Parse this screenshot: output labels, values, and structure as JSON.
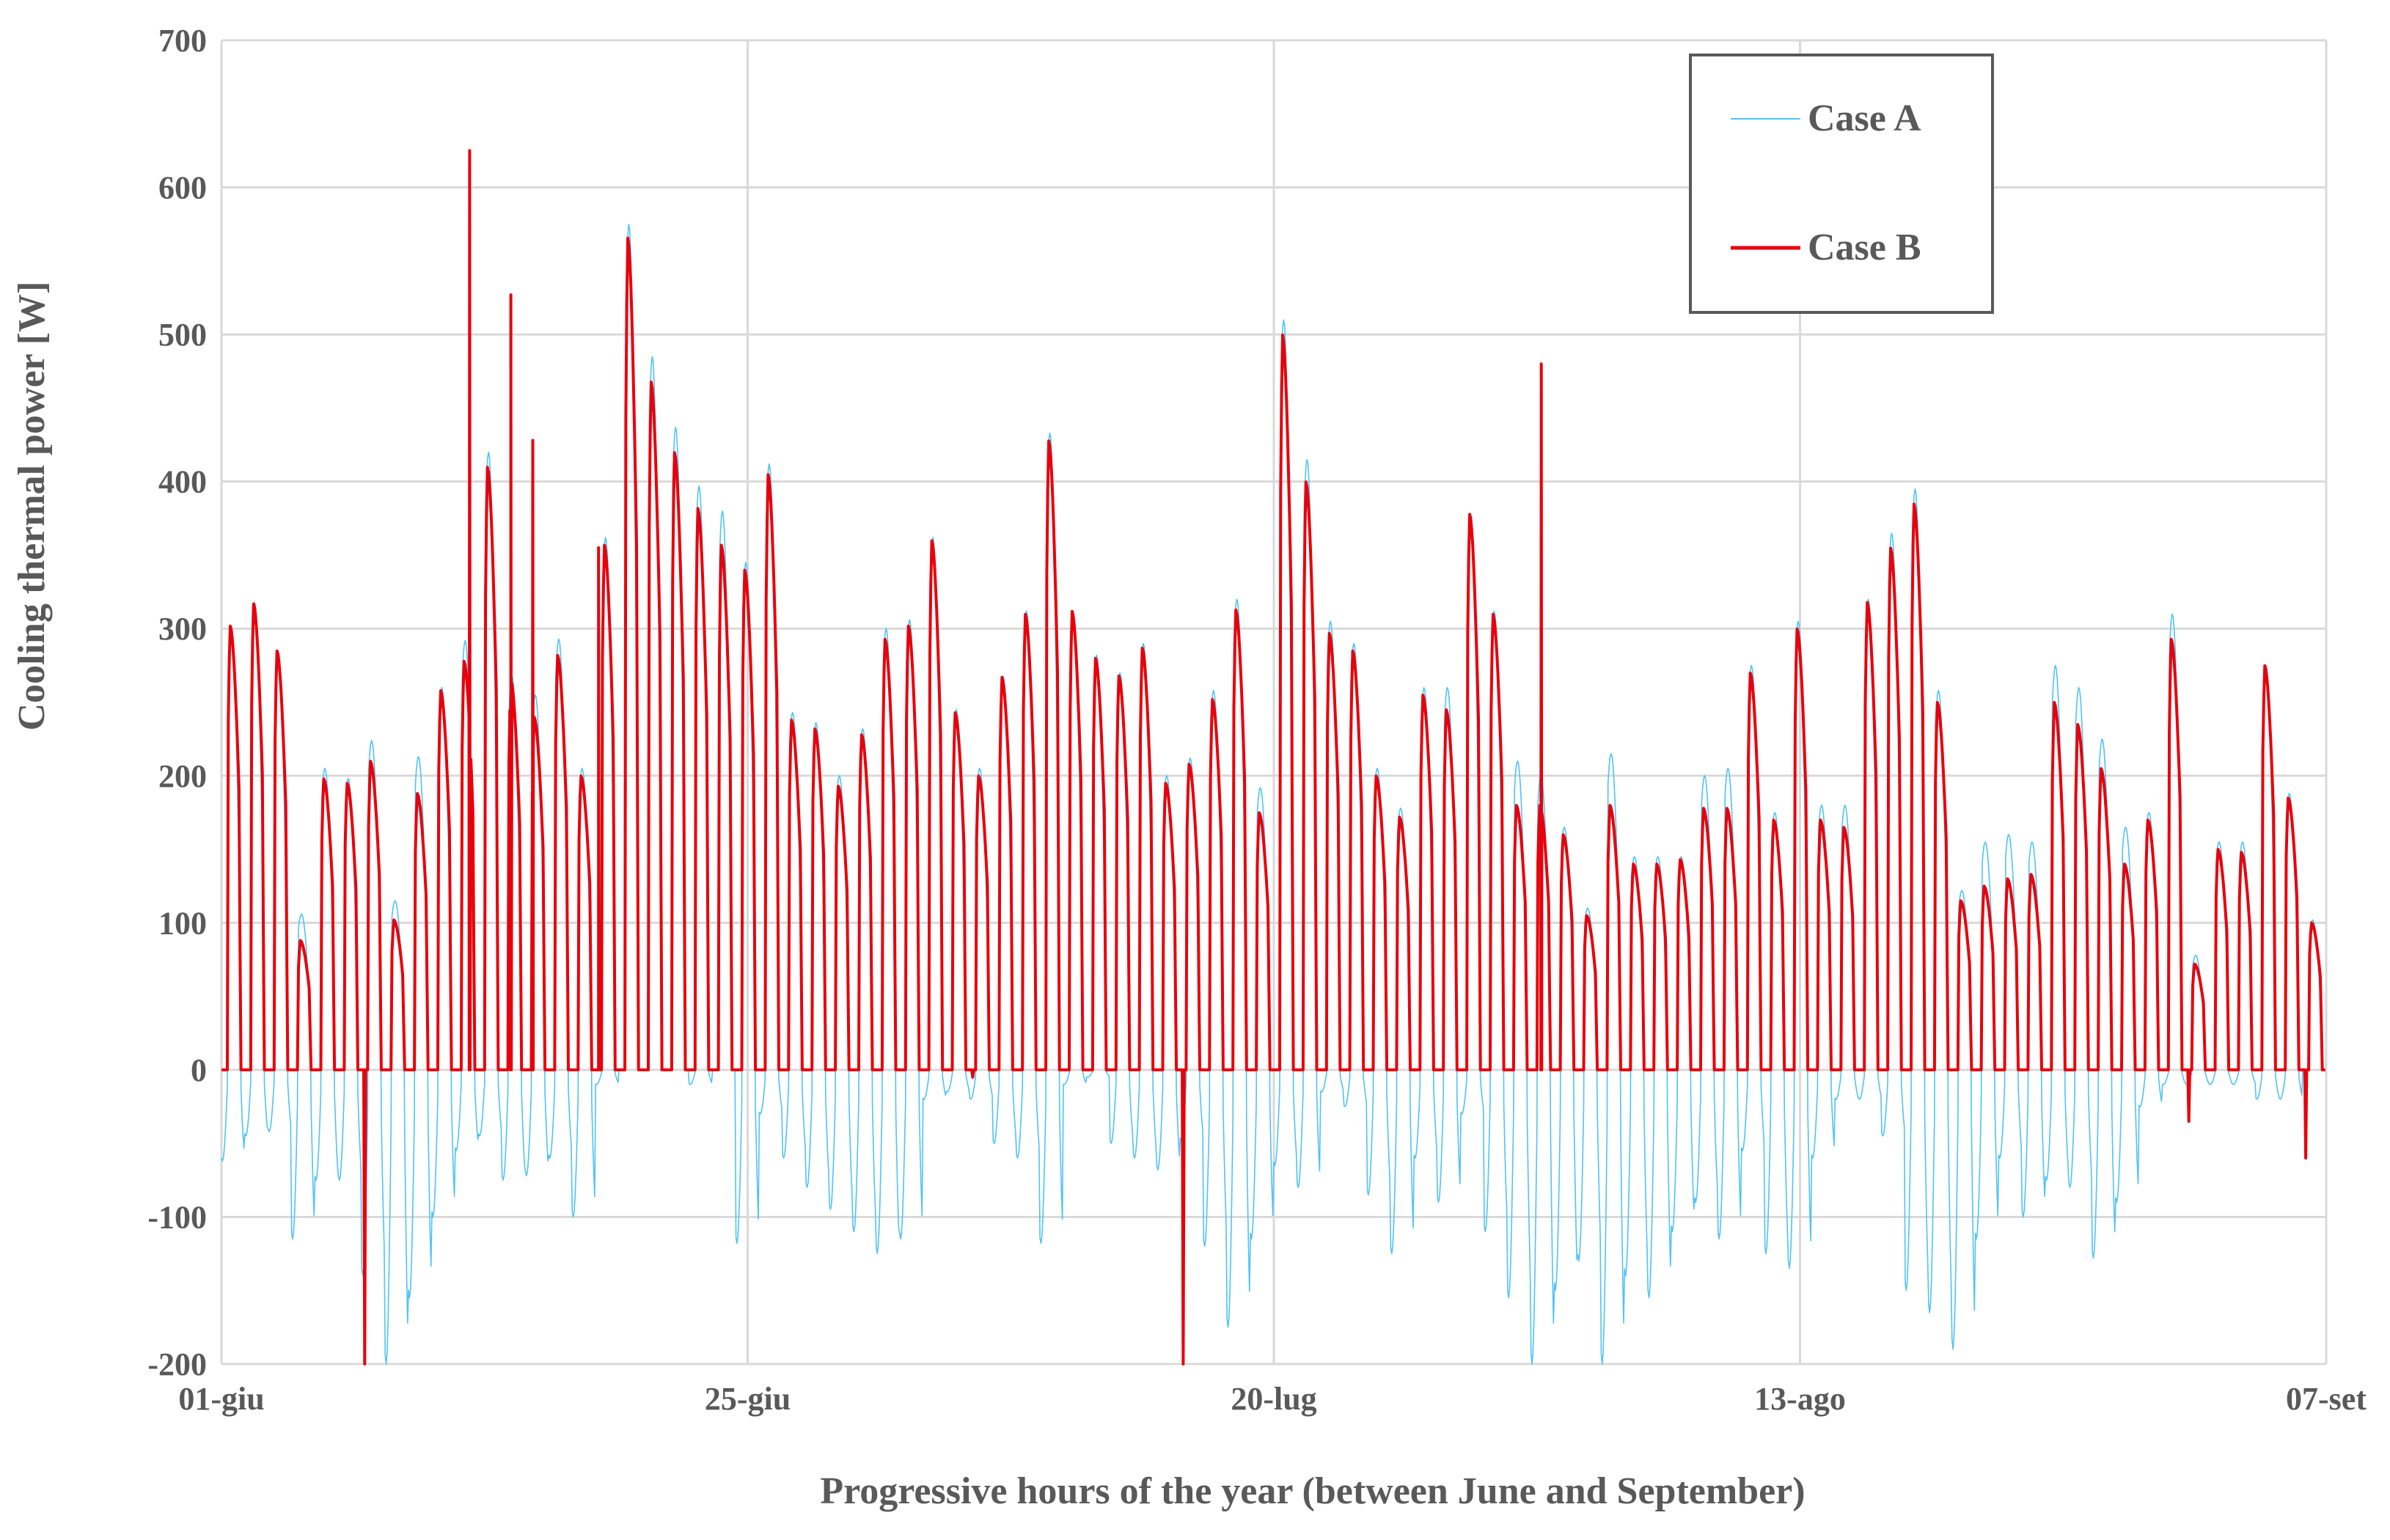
{
  "chart_data": {
    "type": "line",
    "title": "",
    "xlabel": "Progressive hours of the year (between June and September)",
    "ylabel": "Cooling thermal power [W]",
    "ylim": [
      -200,
      700
    ],
    "yticks": [
      -200,
      -100,
      0,
      100,
      200,
      300,
      400,
      500,
      600,
      700
    ],
    "xlim_hours": [
      0,
      2400
    ],
    "xtick_labels": [
      "01-giu",
      "25-giu",
      "20-lug",
      "13-ago",
      "07-set"
    ],
    "grid": true,
    "legend_position": "top-right",
    "series": [
      {
        "name": "Case A",
        "color": "#4FC3F7",
        "daily_peaks": [
          300,
          318,
          285,
          106,
          205,
          198,
          224,
          115,
          213,
          260,
          292,
          420,
          268,
          255,
          293,
          205,
          362,
          575,
          485,
          437,
          397,
          380,
          345,
          412,
          243,
          236,
          200,
          232,
          300,
          306,
          362,
          245,
          205,
          268,
          312,
          433,
          310,
          282,
          270,
          290,
          200,
          212,
          258,
          320,
          192,
          510,
          415,
          305,
          290,
          205,
          178,
          260,
          260,
          378,
          312,
          210,
          200,
          165,
          110,
          215,
          145,
          145,
          145,
          200,
          205,
          275,
          175,
          305,
          180,
          180,
          320,
          365,
          395,
          258,
          122,
          155,
          160,
          155,
          275,
          260,
          225,
          165,
          175,
          310,
          78,
          155,
          155,
          275,
          188,
          102
        ],
        "daily_troughs": [
          -62,
          -45,
          -42,
          -115,
          -75,
          -75,
          -140,
          -200,
          -155,
          -100,
          -55,
          -45,
          -75,
          -72,
          -60,
          -100,
          -10,
          0,
          0,
          0,
          -10,
          0,
          -118,
          -30,
          -60,
          -80,
          -95,
          -110,
          -125,
          -115,
          -20,
          -15,
          -20,
          -50,
          -60,
          -118,
          -10,
          -5,
          -50,
          -60,
          -68,
          -48,
          -120,
          -175,
          -115,
          -65,
          -80,
          -15,
          -25,
          -85,
          -125,
          -60,
          -90,
          -30,
          -110,
          -155,
          -200,
          -150,
          -130,
          -200,
          -140,
          -155,
          -110,
          -90,
          -115,
          -55,
          -125,
          -135,
          -60,
          -20,
          -20,
          -45,
          -150,
          -165,
          -190,
          -115,
          -60,
          -100,
          -75,
          -80,
          -128,
          -90,
          -25,
          -10,
          -10,
          -10,
          -10,
          -20,
          -20,
          0
        ],
        "sampled_hourly_note": "Peaks/troughs read per day; hourly curve reconstructed from them."
      },
      {
        "name": "Case B",
        "color": "#E8000B",
        "daily_peaks": [
          302,
          317,
          285,
          88,
          198,
          195,
          210,
          102,
          188,
          258,
          278,
          410,
          265,
          240,
          282,
          200,
          357,
          566,
          468,
          420,
          382,
          357,
          340,
          405,
          238,
          232,
          193,
          228,
          293,
          302,
          360,
          243,
          200,
          267,
          310,
          428,
          312,
          280,
          268,
          287,
          195,
          208,
          252,
          313,
          175,
          500,
          400,
          297,
          285,
          200,
          172,
          255,
          245,
          378,
          310,
          180,
          180,
          160,
          105,
          180,
          140,
          140,
          143,
          178,
          178,
          270,
          170,
          300,
          170,
          165,
          318,
          355,
          385,
          250,
          115,
          125,
          130,
          133,
          250,
          235,
          205,
          140,
          170,
          293,
          72,
          150,
          148,
          275,
          185,
          100
        ],
        "daily_troughs": [
          0,
          0,
          0,
          0,
          0,
          0,
          -200,
          0,
          0,
          0,
          0,
          0,
          0,
          0,
          0,
          0,
          0,
          0,
          0,
          0,
          0,
          0,
          0,
          0,
          0,
          0,
          0,
          0,
          0,
          0,
          0,
          0,
          -5,
          0,
          0,
          0,
          0,
          0,
          0,
          0,
          0,
          -200,
          0,
          0,
          0,
          0,
          0,
          0,
          0,
          0,
          0,
          0,
          0,
          0,
          0,
          0,
          0,
          0,
          0,
          0,
          0,
          0,
          0,
          0,
          0,
          0,
          0,
          0,
          0,
          0,
          0,
          0,
          0,
          0,
          0,
          0,
          0,
          0,
          0,
          0,
          0,
          0,
          0,
          0,
          -35,
          0,
          0,
          0,
          0,
          -60
        ],
        "spikes": [
          [
            283,
            625
          ],
          [
            330,
            527
          ],
          [
            355,
            428
          ],
          [
            1505,
            480
          ],
          [
            430,
            355
          ]
        ]
      }
    ]
  },
  "legend": {
    "items": [
      {
        "label": "Case A",
        "color": "#4FC3F7"
      },
      {
        "label": "Case B",
        "color": "#E8000B"
      }
    ]
  }
}
